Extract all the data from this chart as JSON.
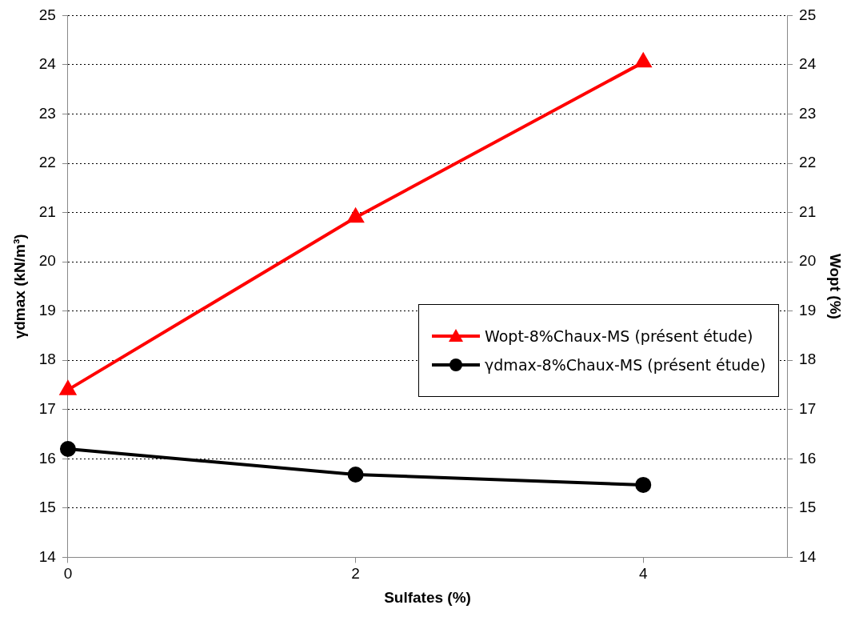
{
  "chart_data": {
    "type": "line",
    "xlabel": "Sulfates (%)",
    "ylabel": "γdmax (kN/m³)",
    "y2label": "Wopt (%)",
    "x": [
      0,
      2,
      4
    ],
    "xlim": [
      0,
      5
    ],
    "xticks": [
      0,
      2,
      4
    ],
    "ylim": [
      14,
      25
    ],
    "yticks": [
      14,
      15,
      16,
      17,
      18,
      19,
      20,
      21,
      22,
      23,
      24,
      25
    ],
    "y2lim": [
      14,
      25
    ],
    "y2ticks": [
      14,
      15,
      16,
      17,
      18,
      19,
      20,
      21,
      22,
      23,
      24,
      25
    ],
    "series": [
      {
        "name": "Wopt-8%Chaux-MS (présent étude)",
        "color": "#ff0000",
        "values": [
          17.4,
          20.9,
          24.05
        ],
        "axis": "y2",
        "marker": "triangle"
      },
      {
        "name": "γdmax-8%Chaux-MS (présent étude)",
        "color": "#000000",
        "values": [
          16.2,
          15.68,
          15.47
        ],
        "marker": "circle"
      }
    ],
    "grid": "y",
    "legend": "right",
    "line_style": "solid"
  }
}
